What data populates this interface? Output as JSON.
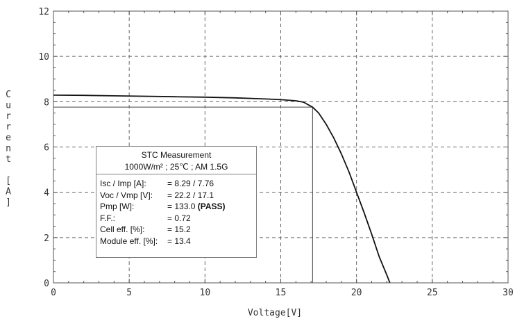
{
  "chart_data": {
    "type": "line",
    "title": "",
    "xlabel": "Voltage[V]",
    "ylabel": "Current [A]",
    "xlim": [
      0,
      30
    ],
    "ylim": [
      0,
      12
    ],
    "xticks": [
      "0",
      "5",
      "10",
      "15",
      "20",
      "25",
      "30"
    ],
    "yticks": [
      "0",
      "2",
      "4",
      "6",
      "8",
      "10",
      "12"
    ],
    "grid": true,
    "series": [
      {
        "name": "",
        "color": "#111111",
        "x": [
          0,
          2,
          4,
          6,
          8,
          10,
          12,
          14,
          15,
          16,
          16.5,
          17.1,
          17.5,
          18,
          18.5,
          19,
          19.5,
          20,
          20.5,
          21,
          21.5,
          22,
          22.2
        ],
        "y": [
          8.29,
          8.28,
          8.26,
          8.24,
          8.22,
          8.2,
          8.17,
          8.12,
          8.09,
          8.04,
          7.98,
          7.76,
          7.5,
          7.0,
          6.4,
          5.7,
          4.9,
          4.0,
          3.1,
          2.15,
          1.15,
          0.35,
          0.0
        ]
      }
    ],
    "mpp": {
      "v": 17.1,
      "i": 7.76
    }
  },
  "info_box": {
    "title": "STC Measurement",
    "conditions": "1000W/m² ; 25℃ ; AM 1.5G",
    "rows": [
      {
        "label": "Isc / Imp [A]:",
        "value": "= 8.29 / 7.76"
      },
      {
        "label": "Voc / Vmp [V]:",
        "value": "= 22.2 / 17.1"
      },
      {
        "label": "Pmp [W]:",
        "value": "= 133.0",
        "value_bold": "(PASS)"
      },
      {
        "label": "F.F.:",
        "value": "= 0.72"
      },
      {
        "label": "Cell eff. [%]:",
        "value": "= 15.2"
      },
      {
        "label": "Module eff. [%]:",
        "value": "= 13.4"
      }
    ]
  }
}
